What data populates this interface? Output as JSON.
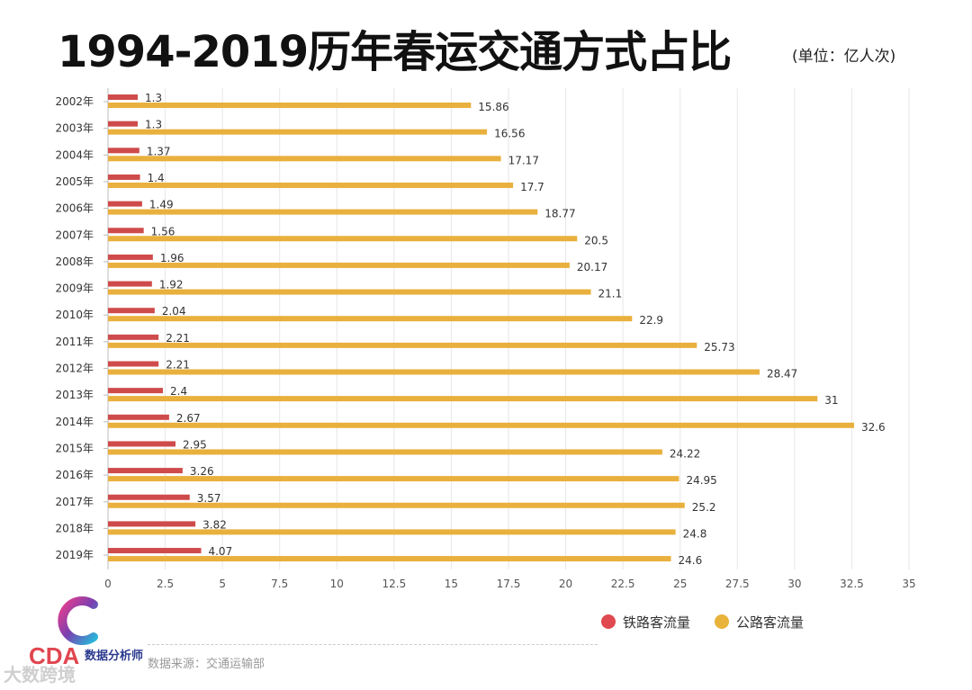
{
  "title": "1994-2019历年春运交通方式占比",
  "unit": "(单位：亿人次)",
  "source": "数据来源：交通运输部",
  "logo_text": "数据分析师",
  "watermark": "大数跨境",
  "colors": {
    "rail": "#cf4b4b",
    "road": "#e9b03e",
    "grid": "#e6e6e6",
    "axis": "#555555"
  },
  "legend": [
    {
      "label": "铁路客流量",
      "color": "#e0494f"
    },
    {
      "label": "公路客流量",
      "color": "#e9b23a"
    }
  ],
  "chart_data": {
    "type": "bar",
    "orientation": "horizontal",
    "title": "1994-2019历年春运交通方式占比",
    "xlabel": "",
    "ylabel": "",
    "xlim": [
      0,
      35
    ],
    "xticks": [
      0,
      2.5,
      5,
      7.5,
      10,
      12.5,
      15,
      17.5,
      20,
      22.5,
      25,
      27.5,
      30,
      32.5,
      35
    ],
    "xtick_labels": [
      "0",
      "2.5",
      "5",
      "7.5",
      "10",
      "12.5",
      "15",
      "17.5",
      "20",
      "22.5",
      "25",
      "27.5",
      "30",
      "32.5",
      "35"
    ],
    "grid": true,
    "legend_position": "bottom-right",
    "categories": [
      "2002年",
      "2003年",
      "2004年",
      "2005年",
      "2006年",
      "2007年",
      "2008年",
      "2009年",
      "2010年",
      "2011年",
      "2012年",
      "2013年",
      "2014年",
      "2015年",
      "2016年",
      "2017年",
      "2018年",
      "2019年"
    ],
    "series": [
      {
        "name": "铁路客流量",
        "values": [
          1.3,
          1.3,
          1.37,
          1.4,
          1.49,
          1.56,
          1.96,
          1.92,
          2.04,
          2.21,
          2.21,
          2.4,
          2.67,
          2.95,
          3.26,
          3.57,
          3.82,
          4.07
        ],
        "labels": [
          "1.3",
          "1.3",
          "1.37",
          "1.4",
          "1.49",
          "1.56",
          "1.96",
          "1.92",
          "2.04",
          "2.21",
          "2.21",
          "2.4",
          "2.67",
          "2.95",
          "3.26",
          "3.57",
          "3.82",
          "4.07"
        ]
      },
      {
        "name": "公路客流量",
        "values": [
          15.86,
          16.56,
          17.17,
          17.7,
          18.77,
          20.5,
          20.17,
          21.1,
          22.9,
          25.73,
          28.47,
          31,
          32.6,
          24.22,
          24.95,
          25.2,
          24.8,
          24.6
        ],
        "labels": [
          "15.86",
          "16.56",
          "17.17",
          "17.7",
          "18.77",
          "20.5",
          "20.17",
          "21.1",
          "22.9",
          "25.73",
          "28.47",
          "31",
          "32.6",
          "24.22",
          "24.95",
          "25.2",
          "24.8",
          "24.6"
        ]
      }
    ]
  }
}
